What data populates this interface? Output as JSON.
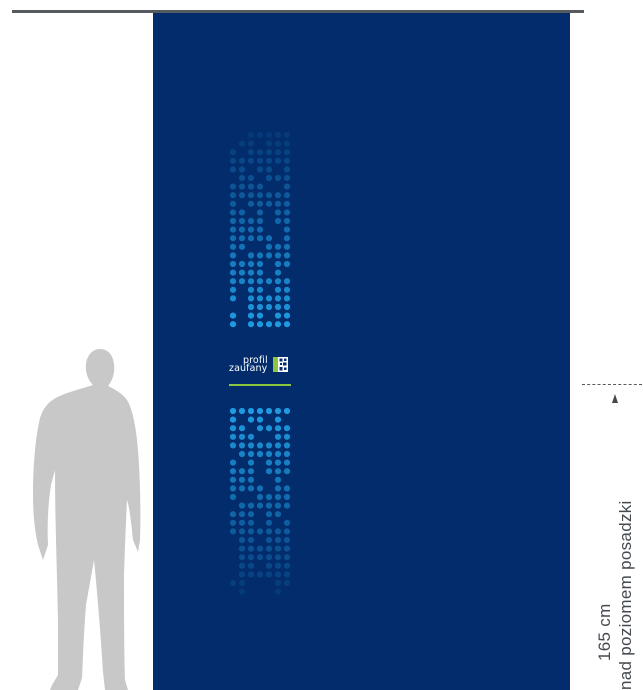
{
  "logo": {
    "word_top": "profil",
    "word_bottom": "zaufany",
    "accent_color": "#8cc63f",
    "mark_icon": "qr-code-icon"
  },
  "measurement": {
    "value_label": "165 cm",
    "description_label": "nad poziomem posadzki",
    "arrow_icon": "arrow-up-icon"
  },
  "colors": {
    "banner_background": "#022c6b",
    "dot_bright": "#1e9be0",
    "silhouette": "#c8c8c8",
    "text_gray": "#444a50"
  }
}
